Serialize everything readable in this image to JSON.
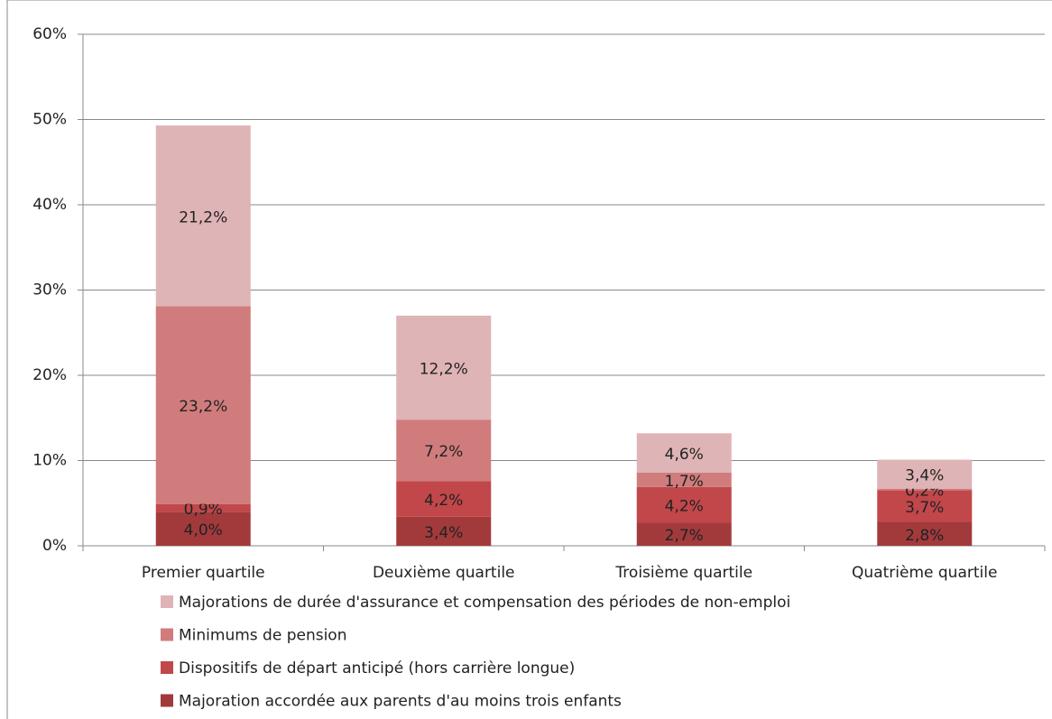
{
  "chart_data": {
    "type": "stacked_bar",
    "categories": [
      "Premier quartile",
      "Deuxième quartile",
      "Troisième quartile",
      "Quatrième quartile"
    ],
    "series": [
      {
        "name": "Majoration accordée aux parents d'au moins trois enfants",
        "color": "#a23a3c",
        "values": [
          4.0,
          3.4,
          2.7,
          2.8
        ],
        "value_labels": [
          "4,0%",
          "3,4%",
          "2,7%",
          "2,8%"
        ]
      },
      {
        "name": "Dispositifs de départ anticipé (hors carrière longue)",
        "color": "#c1474a",
        "values": [
          0.9,
          4.2,
          4.2,
          3.7
        ],
        "value_labels": [
          "0,9%",
          "4,2%",
          "4,2%",
          "3,7%"
        ]
      },
      {
        "name": "Minimums de pension",
        "color": "#d07c7d",
        "values": [
          23.2,
          7.2,
          1.7,
          0.2
        ],
        "value_labels": [
          "23,2%",
          "7,2%",
          "1,7%",
          "0,2%"
        ]
      },
      {
        "name": "Majorations de durée d'assurance et compensation des périodes de non-emploi",
        "color": "#dfb4b6",
        "values": [
          21.2,
          12.2,
          4.6,
          3.4
        ],
        "value_labels": [
          "21,2%",
          "12,2%",
          "4,6%",
          "3,4%"
        ]
      }
    ],
    "ylim": [
      0,
      60
    ],
    "yticks": [
      {
        "value": 0,
        "label": "0%"
      },
      {
        "value": 10,
        "label": "10%"
      },
      {
        "value": 20,
        "label": "20%"
      },
      {
        "value": 30,
        "label": "30%"
      },
      {
        "value": 40,
        "label": "40%"
      },
      {
        "value": 50,
        "label": "50%"
      },
      {
        "value": 60,
        "label": "60%"
      }
    ],
    "grid": true
  }
}
